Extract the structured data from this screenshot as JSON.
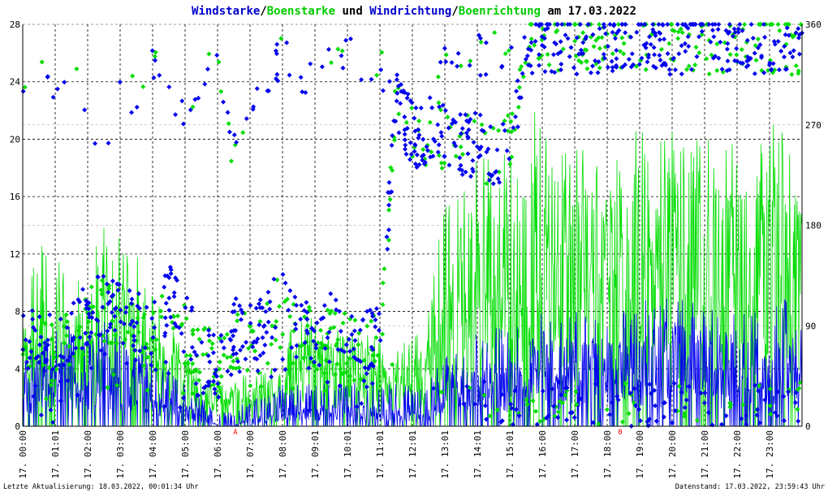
{
  "chart_data": {
    "type": "line",
    "title": {
      "parts": [
        {
          "text": "Windstarke",
          "color": "#0000cc"
        },
        {
          "text": "/",
          "color": "#000000"
        },
        {
          "text": "Boenstarke",
          "color": "#00cc00"
        },
        {
          "text": " und ",
          "color": "#000000"
        },
        {
          "text": "Windrichtung",
          "color": "#0000cc"
        },
        {
          "text": "/",
          "color": "#000000"
        },
        {
          "text": "Boenrichtung",
          "color": "#00cc00"
        },
        {
          "text": " am 17.03.2022",
          "color": "#000000"
        }
      ]
    },
    "colors": {
      "wind": "#0000ee",
      "gust": "#00dd00",
      "grid": "#000000",
      "minor_grid": "#bbbbbb",
      "marker": "#ff0000"
    },
    "y_left": {
      "min": 0,
      "max": 28,
      "ticks": [
        "0",
        "4",
        "8",
        "12",
        "16",
        "20",
        "24",
        "28"
      ]
    },
    "y_right": {
      "min": 0,
      "max": 360,
      "ticks": [
        "0",
        "90",
        "180",
        "270",
        "360"
      ]
    },
    "x_range_hours": [
      0,
      24
    ],
    "x_labels": [
      "17. 00:00",
      "17. 01:01",
      "17. 02:00",
      "17. 03:00",
      "17. 04:00",
      "17. 05:00",
      "17. 06:00",
      "17. 07:00",
      "17. 08:00",
      "17. 09:01",
      "17. 10:01",
      "17. 11:01",
      "17. 12:01",
      "17. 13:01",
      "17. 14:01",
      "17. 15:01",
      "17. 16:00",
      "17. 17:00",
      "17. 18:00",
      "17. 19:00",
      "17. 20:00",
      "17. 21:00",
      "17. 22:00",
      "17. 23:00"
    ],
    "markers": [
      {
        "hour": 6.55,
        "label": "A"
      },
      {
        "hour": 18.4,
        "label": "0"
      }
    ],
    "series": [
      {
        "key": "wind_speed",
        "kind": "line",
        "axis": "left",
        "hour": [
          0.0,
          0.5,
          1.0,
          1.5,
          2.0,
          2.5,
          3.0,
          3.5,
          4.0,
          4.5,
          5.0,
          5.5,
          6.0,
          6.5,
          7.0,
          7.5,
          8.0,
          8.5,
          9.0,
          9.5,
          10.0,
          10.5,
          11.0,
          11.5,
          12.0,
          12.5,
          13.0,
          13.5,
          14.0,
          14.5,
          15.0,
          15.5,
          16.0,
          16.5,
          17.0,
          17.5,
          18.0,
          18.5,
          19.0,
          19.5,
          20.0,
          20.5,
          21.0,
          21.5,
          22.0,
          22.5,
          23.0,
          23.5,
          24.0
        ],
        "typical": [
          2,
          3,
          3,
          3,
          3,
          4,
          3,
          3,
          2,
          2,
          1,
          1,
          0,
          0,
          0.5,
          0.5,
          1,
          1,
          1,
          1,
          1,
          1,
          1,
          1,
          1,
          1,
          2,
          3,
          3,
          3,
          3,
          3,
          4,
          4,
          4,
          4,
          4,
          4,
          4,
          4,
          5,
          5,
          4,
          4,
          4,
          4,
          4,
          4,
          3
        ],
        "peak": [
          5,
          6,
          7,
          7,
          7,
          8,
          7,
          6,
          5,
          4,
          3,
          2,
          1,
          1,
          2,
          2,
          3,
          3,
          3,
          3,
          3,
          3,
          3,
          3,
          3,
          3,
          5,
          6,
          7,
          7,
          7,
          7,
          8,
          8,
          8,
          8,
          8,
          8,
          9,
          9,
          9,
          9,
          9,
          8,
          8,
          8,
          9,
          9,
          7
        ]
      },
      {
        "key": "gust_speed",
        "kind": "line",
        "axis": "left",
        "hour": [
          0.0,
          0.5,
          1.0,
          1.5,
          2.0,
          2.5,
          3.0,
          3.5,
          4.0,
          4.5,
          5.0,
          5.5,
          6.0,
          6.5,
          7.0,
          7.5,
          8.0,
          8.5,
          9.0,
          9.5,
          10.0,
          10.5,
          11.0,
          11.5,
          12.0,
          12.5,
          13.0,
          13.5,
          14.0,
          14.5,
          15.0,
          15.5,
          16.0,
          16.5,
          17.0,
          17.5,
          18.0,
          18.5,
          19.0,
          19.5,
          20.0,
          20.5,
          21.0,
          21.5,
          22.0,
          22.5,
          23.0,
          23.5,
          24.0
        ],
        "typical": [
          4,
          6,
          6,
          5,
          6,
          7,
          7,
          6,
          5,
          4,
          3,
          2,
          2,
          2,
          2,
          2,
          3,
          4,
          4,
          4,
          4,
          4,
          3,
          3,
          3,
          4,
          7,
          9,
          10,
          10,
          10,
          10,
          11,
          11,
          11,
          11,
          11,
          11,
          12,
          12,
          12,
          12,
          12,
          11,
          11,
          11,
          12,
          12,
          10
        ],
        "peak": [
          8,
          13,
          12,
          10,
          11,
          15,
          13,
          12,
          10,
          7,
          6,
          4,
          3,
          3,
          4,
          4,
          6,
          8,
          8,
          7,
          7,
          7,
          6,
          6,
          6,
          8,
          16,
          18,
          20,
          19,
          19,
          21,
          23,
          21,
          20,
          20,
          20,
          21,
          22,
          21,
          22,
          21,
          21,
          20,
          20,
          20,
          21,
          21,
          16
        ]
      },
      {
        "key": "wind_direction",
        "kind": "scatter",
        "axis": "right",
        "hour": [
          0.0,
          0.5,
          1.0,
          1.5,
          2.0,
          2.5,
          3.0,
          3.5,
          4.0,
          4.5,
          5.0,
          5.5,
          6.0,
          6.5,
          7.0,
          7.5,
          8.0,
          8.5,
          9.0,
          9.5,
          10.0,
          10.5,
          11.0,
          11.5,
          12.0,
          12.5,
          13.0,
          13.5,
          14.0,
          14.5,
          15.0,
          15.5,
          16.0,
          16.5,
          17.0,
          17.5,
          18.0,
          18.5,
          19.0,
          19.5,
          20.0,
          20.5,
          21.0,
          21.5,
          22.0,
          22.5,
          23.0,
          23.5,
          24.0
        ],
        "center": [
          80,
          75,
          70,
          85,
          100,
          115,
          105,
          95,
          80,
          120,
          90,
          60,
          55,
          85,
          80,
          100,
          110,
          85,
          80,
          90,
          75,
          70,
          85,
          290,
          260,
          260,
          260,
          255,
          250,
          245,
          250,
          345,
          345,
          345,
          345,
          345,
          350,
          350,
          350,
          345,
          345,
          345,
          350,
          345,
          345,
          345,
          345,
          345,
          345
        ],
        "high": [
          300,
          330,
          330,
          330,
          310,
          270,
          310,
          320,
          340,
          320,
          300,
          330,
          350,
          260,
          310,
          330,
          350,
          330,
          350,
          350,
          350,
          350,
          340,
          320,
          290,
          300,
          350,
          350,
          350,
          355,
          355,
          355,
          355,
          355,
          355,
          355,
          355,
          355,
          355,
          355,
          355,
          355,
          355,
          355,
          355,
          355,
          355,
          355,
          355
        ],
        "low": [
          0,
          10,
          0,
          20,
          40,
          30,
          30,
          20,
          10,
          20,
          10,
          10,
          20,
          30,
          20,
          40,
          40,
          20,
          10,
          20,
          10,
          10,
          10,
          20,
          20,
          40,
          0,
          0,
          0,
          0,
          0,
          0,
          0,
          0,
          0,
          0,
          0,
          0,
          0,
          0,
          0,
          0,
          0,
          0,
          0,
          0,
          0,
          0,
          0
        ],
        "outlier_rate": [
          0.25,
          0.3,
          0.25,
          0.2,
          0.2,
          0.25,
          0.25,
          0.25,
          0.25,
          0.25,
          0.25,
          0.25,
          0.25,
          0.25,
          0.25,
          0.25,
          0.25,
          0.25,
          0.25,
          0.25,
          0.25,
          0.25,
          0.2,
          0.15,
          0.1,
          0.1,
          0.3,
          0.4,
          0.4,
          0.35,
          0.35,
          0.4,
          0.45,
          0.45,
          0.45,
          0.45,
          0.45,
          0.5,
          0.5,
          0.45,
          0.45,
          0.45,
          0.45,
          0.45,
          0.45,
          0.45,
          0.45,
          0.45,
          0.45
        ]
      },
      {
        "key": "gust_direction",
        "kind": "scatter",
        "axis": "right",
        "hour": [
          0.0,
          0.5,
          1.0,
          1.5,
          2.0,
          2.5,
          3.0,
          3.5,
          4.0,
          4.5,
          5.0,
          5.5,
          6.0,
          6.5,
          7.0,
          7.5,
          8.0,
          8.5,
          9.0,
          9.5,
          10.0,
          10.5,
          11.0,
          11.5,
          12.0,
          12.5,
          13.0,
          13.5,
          14.0,
          14.5,
          15.0,
          15.5,
          16.0,
          16.5,
          17.0,
          17.5,
          18.0,
          18.5,
          19.0,
          19.5,
          20.0,
          20.5,
          21.0,
          21.5,
          22.0,
          22.5,
          23.0,
          23.5,
          24.0
        ],
        "center": [
          75,
          70,
          65,
          80,
          95,
          105,
          100,
          90,
          75,
          110,
          85,
          60,
          55,
          80,
          80,
          95,
          105,
          85,
          80,
          85,
          70,
          65,
          80,
          285,
          255,
          260,
          260,
          255,
          250,
          245,
          250,
          345,
          345,
          345,
          345,
          345,
          350,
          350,
          350,
          345,
          345,
          345,
          350,
          345,
          345,
          345,
          345,
          345,
          345
        ],
        "high": [
          300,
          330,
          330,
          330,
          310,
          270,
          310,
          320,
          340,
          320,
          300,
          330,
          350,
          260,
          310,
          330,
          350,
          330,
          350,
          350,
          350,
          350,
          340,
          320,
          290,
          300,
          350,
          350,
          350,
          355,
          355,
          355,
          355,
          355,
          355,
          355,
          355,
          355,
          355,
          355,
          355,
          355,
          355,
          355,
          355,
          355,
          355,
          355,
          355
        ],
        "low": [
          0,
          10,
          0,
          20,
          40,
          30,
          30,
          20,
          10,
          20,
          10,
          10,
          20,
          30,
          20,
          40,
          40,
          20,
          10,
          20,
          10,
          10,
          10,
          20,
          20,
          40,
          0,
          0,
          0,
          0,
          0,
          0,
          0,
          0,
          0,
          0,
          0,
          0,
          0,
          0,
          0,
          0,
          0,
          0,
          0,
          0,
          0,
          0,
          0
        ],
        "outlier_rate": [
          0.2,
          0.25,
          0.2,
          0.15,
          0.15,
          0.2,
          0.2,
          0.2,
          0.2,
          0.2,
          0.2,
          0.2,
          0.2,
          0.2,
          0.2,
          0.2,
          0.2,
          0.2,
          0.2,
          0.2,
          0.2,
          0.2,
          0.15,
          0.1,
          0.1,
          0.1,
          0.25,
          0.35,
          0.35,
          0.3,
          0.3,
          0.35,
          0.4,
          0.4,
          0.4,
          0.4,
          0.4,
          0.45,
          0.45,
          0.4,
          0.4,
          0.4,
          0.4,
          0.4,
          0.4,
          0.4,
          0.4,
          0.4,
          0.4
        ]
      }
    ]
  },
  "footer": {
    "left": "Letzte Aktualisierung: 18.03.2022, 00:01:34 Uhr",
    "right": "Datenstand: 17.03.2022, 23:59:43 Uhr"
  }
}
